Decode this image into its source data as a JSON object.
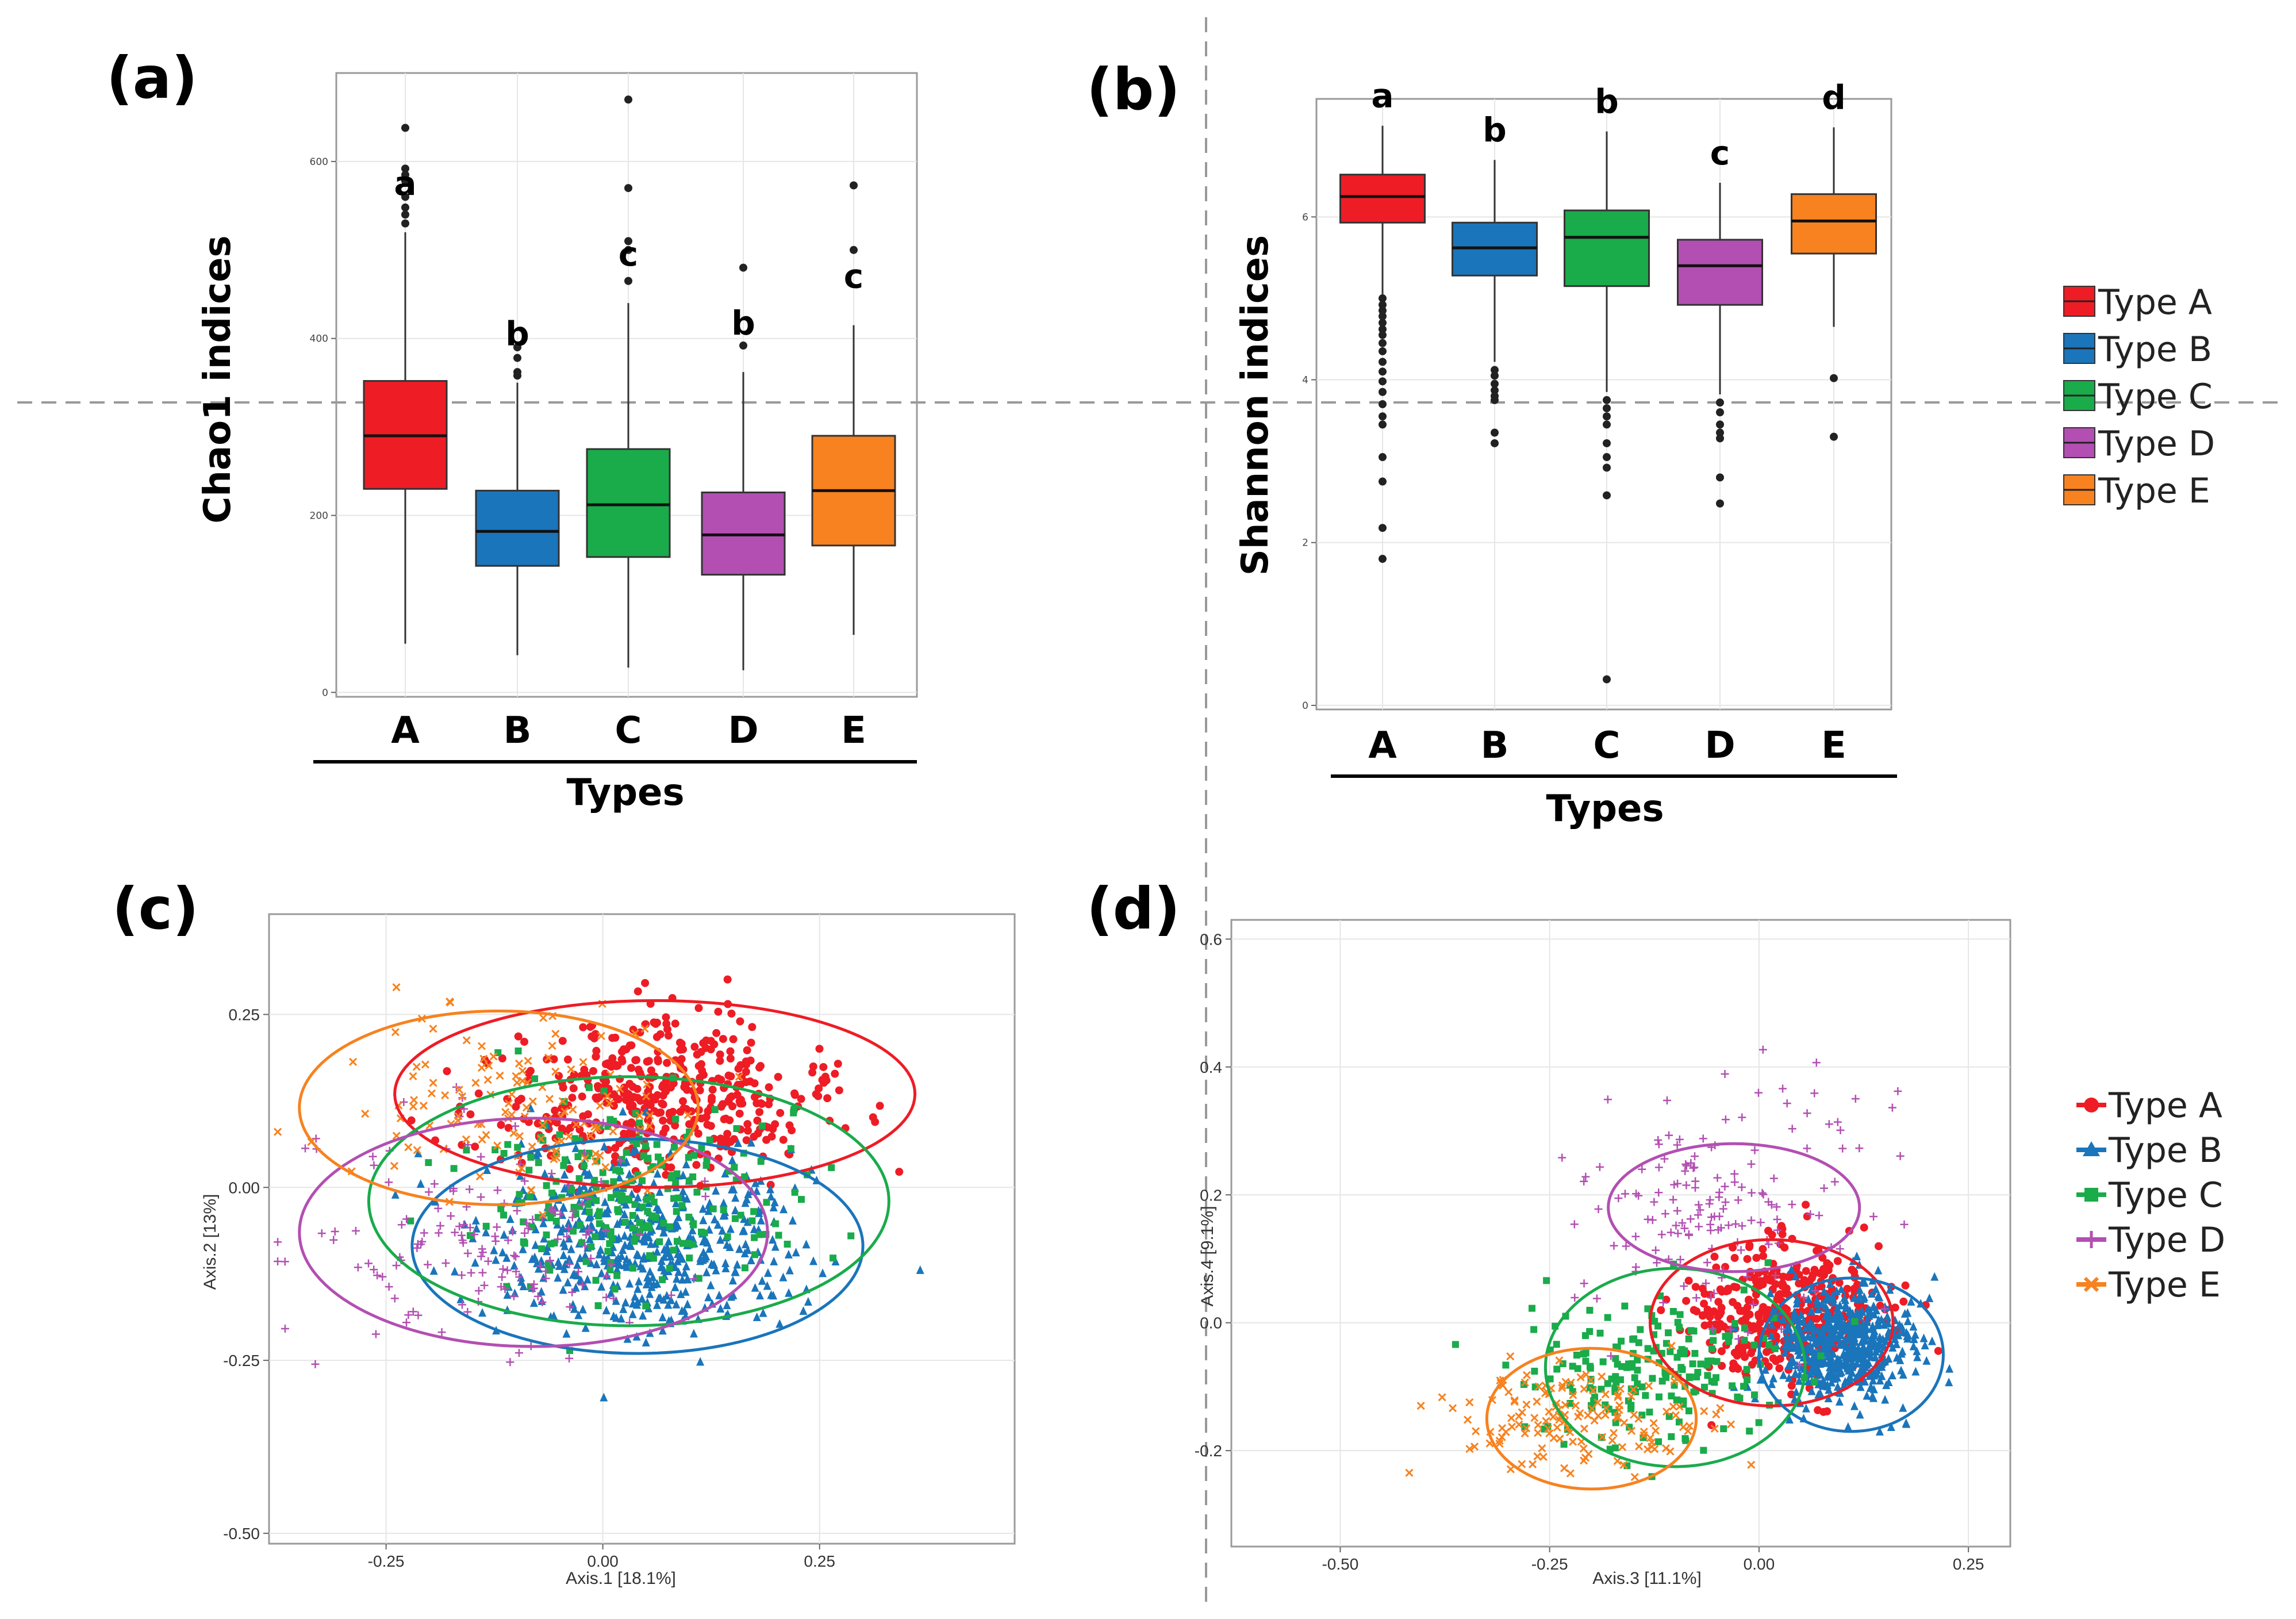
{
  "panel_labels": [
    "(a)",
    "(b)",
    "(c)",
    "(d)"
  ],
  "legend_entries": [
    "Type A",
    "Type B",
    "Type C",
    "Type D",
    "Type E"
  ],
  "colors": {
    "Type A": "#ee1c25",
    "Type B": "#1a75bb",
    "Type C": "#1aab4b",
    "Type D": "#b34fb2",
    "Type E": "#f7821f",
    "grid": "#e6e6e6",
    "divider": "#999999"
  },
  "chart_data": [
    {
      "id": "a",
      "type": "box",
      "ylabel": "Chao1 indices",
      "xlabel": "Types",
      "categories": [
        "A",
        "B",
        "C",
        "D",
        "E"
      ],
      "yticks": [
        0,
        200,
        400,
        600
      ],
      "ylim": [
        -5,
        700
      ],
      "significance": [
        "a",
        "b",
        "c",
        "b",
        "c"
      ],
      "boxes": [
        {
          "q1": 230,
          "median": 290,
          "q3": 352,
          "whisker_low": 55,
          "whisker_high": 520,
          "outliers": [
            530,
            540,
            548,
            560,
            578,
            585,
            592,
            638
          ]
        },
        {
          "q1": 143,
          "median": 182,
          "q3": 228,
          "whisker_low": 42,
          "whisker_high": 350,
          "outliers": [
            358,
            362,
            378,
            390
          ]
        },
        {
          "q1": 153,
          "median": 212,
          "q3": 275,
          "whisker_low": 28,
          "whisker_high": 440,
          "outliers": [
            465,
            500,
            510,
            570,
            670
          ]
        },
        {
          "q1": 133,
          "median": 178,
          "q3": 226,
          "whisker_low": 25,
          "whisker_high": 362,
          "outliers": [
            392,
            480
          ]
        },
        {
          "q1": 166,
          "median": 228,
          "q3": 290,
          "whisker_low": 65,
          "whisker_high": 415,
          "outliers": [
            500,
            573
          ]
        }
      ]
    },
    {
      "id": "b",
      "type": "box",
      "ylabel": "Shannon indices",
      "xlabel": "Types",
      "categories": [
        "A",
        "B",
        "C",
        "D",
        "E"
      ],
      "yticks": [
        0,
        2,
        4,
        6
      ],
      "ylim": [
        -0.05,
        7.45
      ],
      "significance": [
        "a",
        "b",
        "b",
        "c",
        "d"
      ],
      "boxes": [
        {
          "q1": 5.93,
          "median": 6.25,
          "q3": 6.52,
          "whisker_low": 5.05,
          "whisker_high": 7.12,
          "outliers": [
            5.0,
            4.92,
            4.85,
            4.78,
            4.7,
            4.62,
            4.55,
            4.45,
            4.35,
            4.22,
            4.1,
            3.98,
            3.85,
            3.7,
            3.55,
            3.45,
            3.05,
            2.75,
            2.18,
            1.8
          ]
        },
        {
          "q1": 5.28,
          "median": 5.62,
          "q3": 5.93,
          "whisker_low": 4.22,
          "whisker_high": 6.7,
          "outliers": [
            4.12,
            4.05,
            3.95,
            3.87,
            3.8,
            3.75,
            3.35,
            3.22
          ]
        },
        {
          "q1": 5.15,
          "median": 5.75,
          "q3": 6.08,
          "whisker_low": 3.85,
          "whisker_high": 7.05,
          "outliers": [
            3.75,
            3.65,
            3.55,
            3.45,
            3.22,
            3.05,
            2.92,
            2.58,
            0.32
          ]
        },
        {
          "q1": 4.92,
          "median": 5.4,
          "q3": 5.72,
          "whisker_low": 3.82,
          "whisker_high": 6.42,
          "outliers": [
            3.72,
            3.6,
            3.45,
            3.35,
            3.28,
            2.8,
            2.48
          ]
        },
        {
          "q1": 5.55,
          "median": 5.95,
          "q3": 6.28,
          "whisker_low": 4.65,
          "whisker_high": 7.1,
          "outliers": [
            4.02,
            3.3
          ]
        }
      ]
    },
    {
      "id": "c",
      "type": "scatter",
      "xlabel": "Axis.1   [18.1%]",
      "ylabel": "Axis.2   [13%]",
      "xticks": [
        -0.25,
        0.0,
        0.25
      ],
      "xtick_labels": [
        "-0.25",
        "0.00",
        "0.25"
      ],
      "yticks": [
        -0.5,
        -0.25,
        0.0,
        0.25
      ],
      "ytick_labels": [
        "-0.50",
        "-0.25",
        "0.00",
        "0.25"
      ],
      "xlim": [
        -0.385,
        0.475
      ],
      "ylim": [
        -0.515,
        0.395
      ],
      "series": [
        {
          "name": "Type A",
          "marker": "circle",
          "n": 450,
          "cx": 0.06,
          "cy": 0.13,
          "sx": 0.13,
          "sy": 0.075,
          "ellipse": {
            "cx": 0.06,
            "cy": 0.135,
            "rx": 0.3,
            "ry": 0.135
          }
        },
        {
          "name": "Type B",
          "marker": "triangle",
          "n": 520,
          "cx": 0.05,
          "cy": -0.08,
          "sx": 0.12,
          "sy": 0.09,
          "ellipse": {
            "cx": 0.04,
            "cy": -0.085,
            "rx": 0.26,
            "ry": 0.155
          }
        },
        {
          "name": "Type C",
          "marker": "square",
          "n": 240,
          "cx": 0.03,
          "cy": -0.01,
          "sx": 0.12,
          "sy": 0.1,
          "ellipse": {
            "cx": 0.03,
            "cy": -0.02,
            "rx": 0.3,
            "ry": 0.18
          }
        },
        {
          "name": "Type D",
          "marker": "plus",
          "n": 160,
          "cx": -0.12,
          "cy": -0.08,
          "sx": 0.13,
          "sy": 0.11,
          "ellipse": {
            "cx": -0.08,
            "cy": -0.065,
            "rx": 0.27,
            "ry": 0.165
          }
        },
        {
          "name": "Type E",
          "marker": "x",
          "n": 130,
          "cx": -0.1,
          "cy": 0.12,
          "sx": 0.12,
          "sy": 0.08,
          "ellipse": {
            "cx": -0.12,
            "cy": 0.115,
            "rx": 0.23,
            "ry": 0.14
          }
        }
      ]
    },
    {
      "id": "d",
      "type": "scatter",
      "xlabel": "Axis.3   [11.1%]",
      "ylabel": "Axis.4   [9.1%]",
      "xticks": [
        -0.5,
        -0.25,
        0.0,
        0.25
      ],
      "xtick_labels": [
        "-0.50",
        "-0.25",
        "0.00",
        "0.25"
      ],
      "yticks": [
        -0.2,
        0.0,
        0.2,
        0.4,
        0.6
      ],
      "ytick_labels": [
        "-0.2",
        "0.0",
        "0.2",
        "0.4",
        "0.6"
      ],
      "xlim": [
        -0.63,
        0.3
      ],
      "ylim": [
        -0.35,
        0.63
      ],
      "series": [
        {
          "name": "Type A",
          "marker": "circle",
          "n": 380,
          "cx": 0.03,
          "cy": 0.01,
          "sx": 0.08,
          "sy": 0.07,
          "ellipse": {
            "cx": 0.015,
            "cy": 0.0,
            "rx": 0.145,
            "ry": 0.13
          }
        },
        {
          "name": "Type B",
          "marker": "triangle",
          "n": 520,
          "cx": 0.1,
          "cy": -0.03,
          "sx": 0.06,
          "sy": 0.06,
          "ellipse": {
            "cx": 0.11,
            "cy": -0.05,
            "rx": 0.11,
            "ry": 0.12
          }
        },
        {
          "name": "Type C",
          "marker": "square",
          "n": 200,
          "cx": -0.12,
          "cy": -0.08,
          "sx": 0.1,
          "sy": 0.08,
          "ellipse": {
            "cx": -0.1,
            "cy": -0.07,
            "rx": 0.155,
            "ry": 0.155
          }
        },
        {
          "name": "Type D",
          "marker": "plus",
          "n": 160,
          "cx": -0.05,
          "cy": 0.18,
          "sx": 0.12,
          "sy": 0.12,
          "ellipse": {
            "cx": -0.03,
            "cy": 0.18,
            "rx": 0.15,
            "ry": 0.1
          }
        },
        {
          "name": "Type E",
          "marker": "x",
          "n": 150,
          "cx": -0.22,
          "cy": -0.15,
          "sx": 0.1,
          "sy": 0.06,
          "ellipse": {
            "cx": -0.2,
            "cy": -0.15,
            "rx": 0.125,
            "ry": 0.11
          }
        }
      ]
    }
  ]
}
